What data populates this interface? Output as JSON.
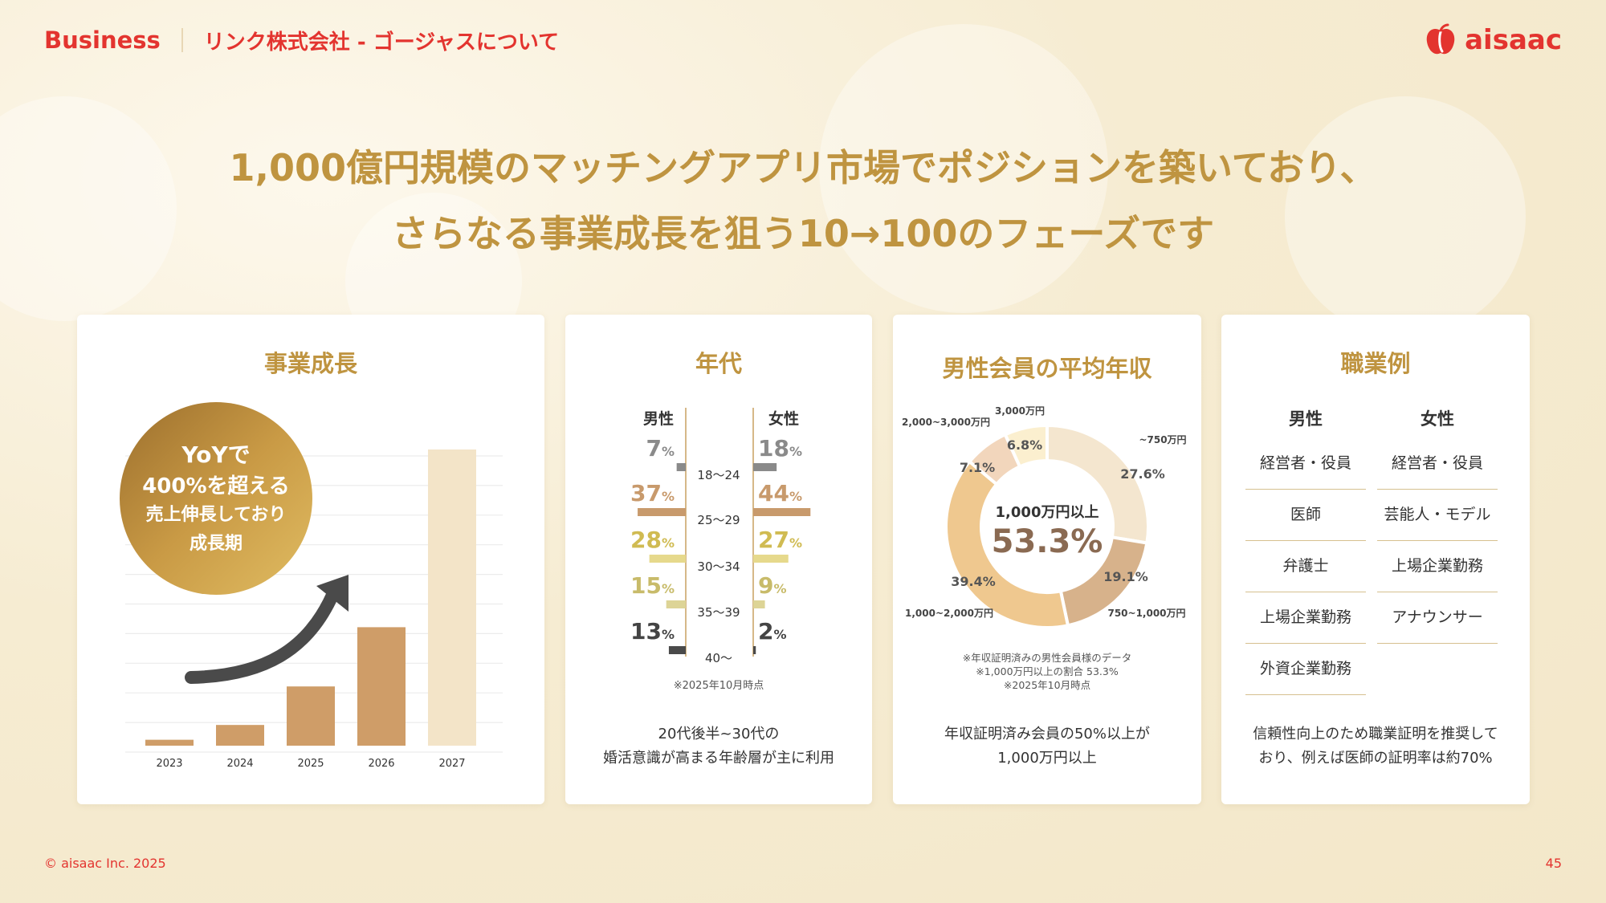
{
  "header": {
    "business": "Business",
    "subtitle": "リンク株式会社 - ゴージャスについて",
    "logo_text": "aisaac",
    "logo_icon": "apple-logo-icon"
  },
  "headline": {
    "line1": "1,000億円規模のマッチングアプリ市場でポジションを築いており、",
    "line2": "さらなる事業成長を狙う10→100のフェーズです"
  },
  "colors": {
    "accent_red": "#e3342f",
    "gold": "#bf9440",
    "bar": "#cf9d68",
    "bar_light": "#f3e4c8"
  },
  "growth": {
    "title": "事業成長",
    "badge_lines": [
      "YoYで",
      "400%を超える",
      "売上伸長しており",
      "成長期"
    ],
    "arrow_icon": "growth-arrow-icon",
    "chart_data": {
      "type": "bar",
      "categories": [
        "2023",
        "2024",
        "2025",
        "2026",
        "2027"
      ],
      "values": [
        2,
        7,
        20,
        40,
        100
      ],
      "highlight_last": true
    }
  },
  "age": {
    "title": "年代",
    "male_label": "男性",
    "female_label": "女性",
    "note": "※2025年10月時点",
    "chart_data": {
      "type": "bar",
      "categories": [
        "18～24",
        "25～29",
        "30～34",
        "35～39",
        "40～"
      ],
      "series": [
        {
          "name": "男性",
          "values": [
            7,
            37,
            28,
            15,
            13
          ]
        },
        {
          "name": "女性",
          "values": [
            18,
            44,
            27,
            9,
            2
          ]
        }
      ],
      "colors": [
        "#8a8a8a",
        "#c89a6c",
        "#e6d98c",
        "#ddd496",
        "#4a4a4a"
      ],
      "unit": "%"
    },
    "foot": [
      "20代後半~30代の",
      "婚活意識が高まる年齢層が主に利用"
    ]
  },
  "income": {
    "title": "男性会員の平均年収",
    "center_label": "1,000万円以上",
    "center_value": "53.3%",
    "notes": [
      "※年収証明済みの男性会員様のデータ",
      "※1,000万円以上の割合 53.3%",
      "※2025年10月時点"
    ],
    "chart_data": {
      "type": "pie",
      "categories": [
        "~750万円",
        "750~1,000万円",
        "1,000~2,000万円",
        "2,000~3,000万円",
        "3,000万円"
      ],
      "values": [
        27.6,
        19.1,
        39.4,
        7.1,
        6.8
      ],
      "value_labels": [
        "27.6%",
        "19.1%",
        "39.4%",
        "7.1%",
        "6.8%"
      ],
      "colors": [
        "#f4e6cf",
        "#d7b28b",
        "#efc88f",
        "#f2d6bc",
        "#fbefcf"
      ]
    },
    "foot": [
      "年収証明済み会員の50%以上が",
      "1,000万円以上"
    ]
  },
  "occupation": {
    "title": "職業例",
    "male_label": "男性",
    "female_label": "女性",
    "male": [
      "経営者・役員",
      "医師",
      "弁護士",
      "上場企業勤務",
      "外資企業勤務"
    ],
    "female": [
      "経営者・役員",
      "芸能人・モデル",
      "上場企業勤務",
      "アナウンサー"
    ],
    "foot": [
      "信頼性向上のため職業証明を推奨して",
      "おり、例えば医師の証明率は約70%"
    ]
  },
  "footer": {
    "copyright": "© aisaac Inc. 2025",
    "page": "45"
  }
}
